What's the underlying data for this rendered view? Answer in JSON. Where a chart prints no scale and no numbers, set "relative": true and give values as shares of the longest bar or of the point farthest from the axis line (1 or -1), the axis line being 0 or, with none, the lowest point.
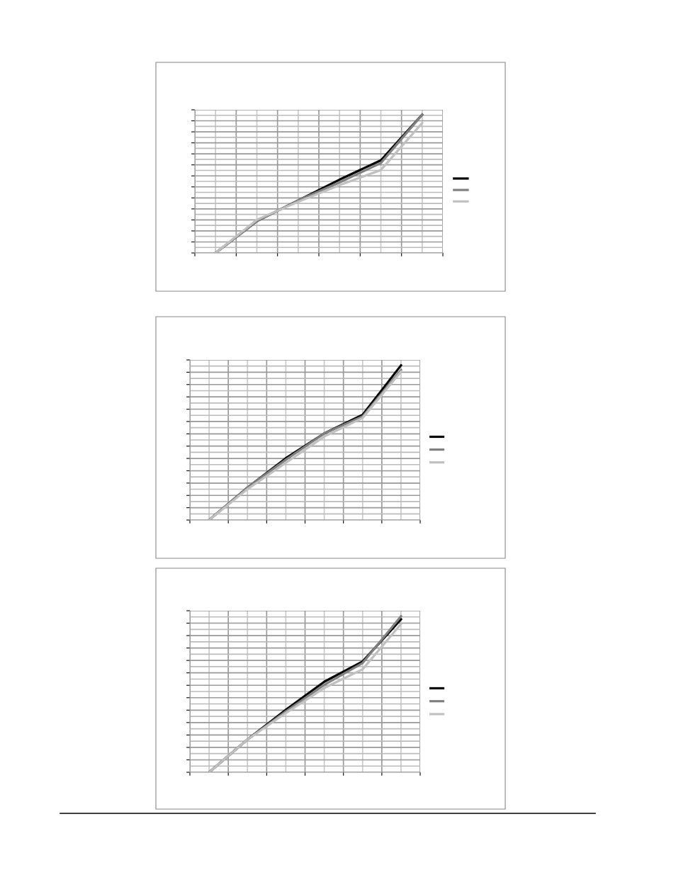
{
  "chart_data": [
    {
      "type": "line",
      "relative": true,
      "categories": [
        null,
        null,
        null,
        null,
        null,
        null
      ],
      "grid": true,
      "marker": "none",
      "series": [
        {
          "color": "#000000",
          "values": [
            0,
            0.23,
            0.38,
            0.53,
            0.67,
            1
          ]
        },
        {
          "color": "#808080",
          "values": [
            0,
            0.23,
            0.38,
            0.51,
            0.65,
            1
          ]
        },
        {
          "color": "#c0c0c0",
          "values": [
            0,
            0.24,
            0.37,
            0.49,
            0.6,
            0.94
          ]
        }
      ]
    },
    {
      "type": "line",
      "relative": true,
      "categories": [
        null,
        null,
        null,
        null,
        null,
        null
      ],
      "grid": true,
      "marker": "none",
      "series": [
        {
          "color": "#000000",
          "values": [
            0,
            0.21,
            0.4,
            0.56,
            0.68,
            1
          ]
        },
        {
          "color": "#808080",
          "values": [
            0,
            0.21,
            0.39,
            0.56,
            0.67,
            0.97
          ]
        },
        {
          "color": "#c0c0c0",
          "values": [
            0,
            0.2,
            0.37,
            0.54,
            0.66,
            0.96
          ]
        }
      ]
    },
    {
      "type": "line",
      "relative": true,
      "categories": [
        null,
        null,
        null,
        null,
        null,
        null
      ],
      "grid": true,
      "marker": "none",
      "series": [
        {
          "color": "#000000",
          "values": [
            0,
            0.21,
            0.4,
            0.58,
            0.71,
            0.98
          ]
        },
        {
          "color": "#808080",
          "values": [
            0,
            0.21,
            0.39,
            0.56,
            0.7,
            1
          ]
        },
        {
          "color": "#c0c0c0",
          "values": [
            0,
            0.21,
            0.38,
            0.54,
            0.66,
            0.95
          ]
        }
      ]
    }
  ]
}
